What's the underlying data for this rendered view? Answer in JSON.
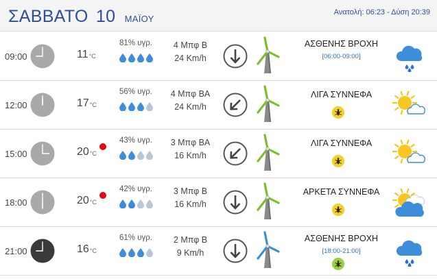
{
  "header": {
    "day_name": "ΣΑΒΒΑΤΟ",
    "day_number": "10",
    "month": "ΜΑΪΟΥ",
    "sun_times": "Ανατολή: 06:23 - Δύση 20:39"
  },
  "colors": {
    "accent": "#2c4f9a",
    "drop_full": "#3d8ddb",
    "drop_empty": "#b9c6d6",
    "warning_yellow": "#f2d12a",
    "warning_green": "#9bd04a",
    "alert_red": "#e30613",
    "turbine_green": "#7cbf2a",
    "turbine_blue": "#3a8fd6"
  },
  "rows": [
    {
      "time": "09:00",
      "temp": "11",
      "unit": "°C",
      "hot_alert": false,
      "humidity": "81% υγρ.",
      "drops": 4,
      "wind_force": "4 Μπφ Β",
      "wind_speed": "24 Km/h",
      "wind_dir_icon": "arrow-down-icon",
      "turbine_color": "green",
      "clock_dark": false,
      "description": "ΑΣΘΕΝΗΣ ΒΡΟΧΗ",
      "description_time": "[06:00-09:00]",
      "warning": "none",
      "weather_icon": "cloud-rain-icon"
    },
    {
      "time": "12:00",
      "temp": "17",
      "unit": "°C",
      "hot_alert": false,
      "humidity": "56% υγρ.",
      "drops": 3,
      "wind_force": "4 Μπφ ΒΑ",
      "wind_speed": "24 Km/h",
      "wind_dir_icon": "arrow-down-left-icon",
      "turbine_color": "green",
      "clock_dark": false,
      "description": "ΛΙΓΑ ΣΥΝΝΕΦΑ",
      "description_time": "",
      "warning": "yellow",
      "weather_icon": "sun-cloud-icon"
    },
    {
      "time": "15:00",
      "temp": "20",
      "unit": "°C",
      "hot_alert": true,
      "humidity": "43% υγρ.",
      "drops": 2,
      "wind_force": "3 Μπφ ΒΑ",
      "wind_speed": "16 Km/h",
      "wind_dir_icon": "arrow-down-left-icon",
      "turbine_color": "green",
      "clock_dark": false,
      "description": "ΛΙΓΑ ΣΥΝΝΕΦΑ",
      "description_time": "",
      "warning": "yellow",
      "weather_icon": "sun-cloud-icon"
    },
    {
      "time": "18:00",
      "temp": "20",
      "unit": "°C",
      "hot_alert": true,
      "humidity": "42% υγρ.",
      "drops": 2,
      "wind_force": "3 Μπφ Β",
      "wind_speed": "16 Km/h",
      "wind_dir_icon": "arrow-down-icon",
      "turbine_color": "green",
      "clock_dark": false,
      "description": "ΑΡΚΕΤΑ ΣΥΝΝΕΦΑ",
      "description_time": "",
      "warning": "yellow",
      "weather_icon": "sun-clouds-icon"
    },
    {
      "time": "21:00",
      "temp": "16",
      "unit": "°C",
      "hot_alert": false,
      "humidity": "61% υγρ.",
      "drops": 3,
      "wind_force": "2 Μπφ Β",
      "wind_speed": "9 Km/h",
      "wind_dir_icon": "arrow-down-icon",
      "turbine_color": "blue",
      "clock_dark": true,
      "description": "ΑΣΘΕΝΗΣ ΒΡΟΧΗ",
      "description_time": "[18:00-21:00]",
      "warning": "green",
      "weather_icon": "cloud-rain-icon"
    }
  ]
}
